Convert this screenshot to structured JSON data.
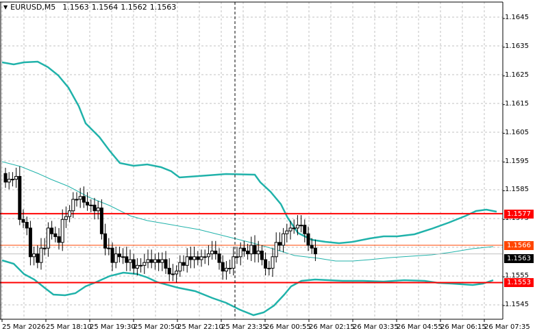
{
  "header": {
    "symbol": "EURUSD,M5",
    "open": "1.1563",
    "high": "1.1564",
    "low": "1.1562",
    "close": "1.1563"
  },
  "colors": {
    "background": "#ffffff",
    "grid": "#c0c0c0",
    "bollinger": "#20b2aa",
    "level_line": "#ff0000",
    "bid_line": "#ff4500",
    "ask_line": "#c0c0c0",
    "candle_bull": "#ffffff",
    "candle_bear": "#000000",
    "axis": "#000000"
  },
  "price_axis": {
    "labels": [
      "1.1645",
      "1.1635",
      "1.1625",
      "1.1615",
      "1.1605",
      "1.1595",
      "1.1585",
      "1.1575",
      "1.1555",
      "1.1545"
    ]
  },
  "price_tags": [
    {
      "name": "resistance",
      "value": "1.1577",
      "color": "#ff0000"
    },
    {
      "name": "bid",
      "value": "1.1566",
      "color": "#ff4500"
    },
    {
      "name": "current",
      "value": "1.1563",
      "color": "#000000"
    },
    {
      "name": "support",
      "value": "1.1553",
      "color": "#ff0000"
    }
  ],
  "time_axis": {
    "labels": [
      "25 Mar 2026",
      "25 Mar 18:10",
      "25 Mar 19:30",
      "25 Mar 20:50",
      "25 Mar 22:10",
      "25 Mar 23:35",
      "26 Mar 00:55",
      "26 Mar 02:15",
      "26 Mar 03:35",
      "26 Mar 04:55",
      "26 Mar 06:15",
      "26 Mar 07:35"
    ]
  },
  "chart_data": {
    "type": "candlestick",
    "title": "EURUSD,M5",
    "ylim": [
      1.154,
      1.165
    ],
    "grid": true,
    "horizontal_levels": [
      1.1577,
      1.1553
    ],
    "bid": 1.1566,
    "last": 1.1563,
    "vertical_marker_time": "25 Mar 23:35",
    "indicators": [
      "Bollinger Bands (upper, middle, lower)"
    ],
    "close_approx": [
      1.1588,
      1.1589,
      1.159,
      1.1575,
      1.1572,
      1.1562,
      1.156,
      1.1565,
      1.1572,
      1.157,
      1.1567,
      1.1575,
      1.1578,
      1.1582,
      1.1583,
      1.1581,
      1.158,
      1.1578,
      1.157,
      1.1565,
      1.156,
      1.1563,
      1.1562,
      1.156,
      1.1558,
      1.1559,
      1.156,
      1.1561,
      1.1561,
      1.156,
      1.1558,
      1.1556,
      1.1557,
      1.156,
      1.1562,
      1.1561,
      1.1561,
      1.1562,
      1.1563,
      1.1564,
      1.156,
      1.1557,
      1.1558,
      1.1562,
      1.1565,
      1.1564,
      1.1566,
      1.1563,
      1.1561,
      1.1558,
      1.1562,
      1.1567,
      1.157,
      1.1571,
      1.1572,
      1.1573,
      1.157,
      1.1566,
      1.1563
    ]
  }
}
